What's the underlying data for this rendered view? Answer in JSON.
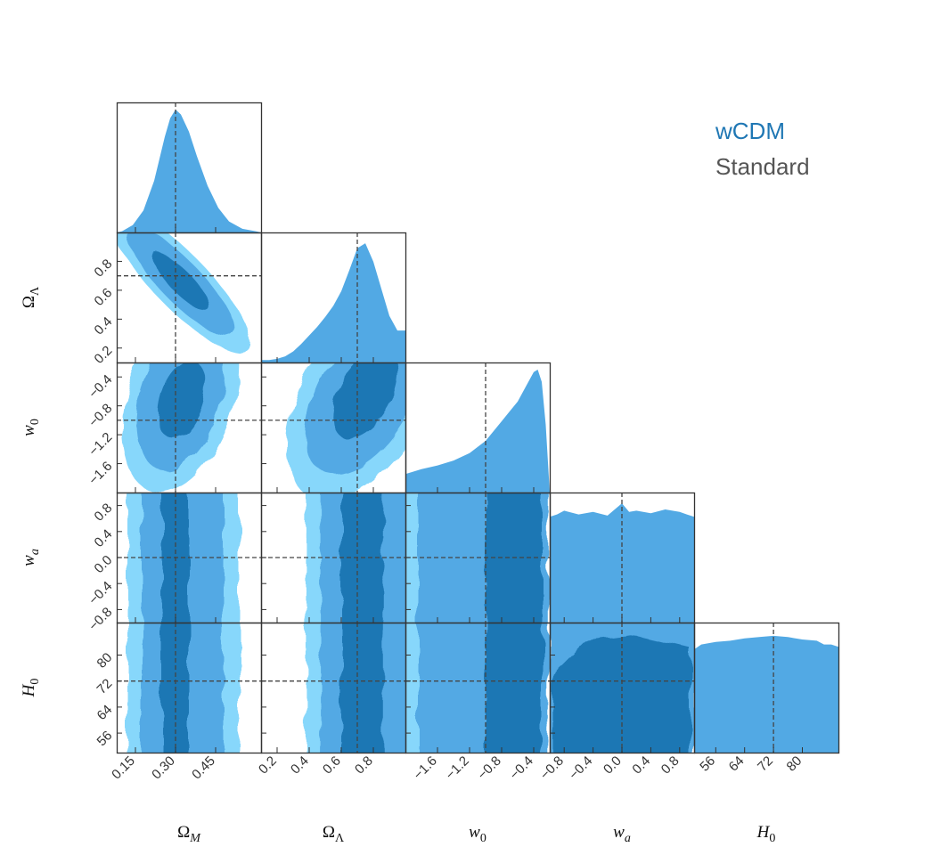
{
  "chart_data": {
    "type": "corner",
    "parameters": [
      {
        "key": "om",
        "label": "Ω",
        "sub": "M",
        "range": [
          0.08,
          0.62
        ],
        "ticks": [
          0.15,
          0.3,
          0.45
        ],
        "tick_labels": [
          "0.15",
          "0.30",
          "0.45"
        ],
        "truth": 0.3
      },
      {
        "key": "ol",
        "label": "Ω",
        "sub": "Λ",
        "range": [
          0.1,
          1.0
        ],
        "ticks": [
          0.2,
          0.4,
          0.6,
          0.8
        ],
        "tick_labels": [
          "0.2",
          "0.4",
          "0.6",
          "0.8"
        ],
        "truth": 0.7
      },
      {
        "key": "w0",
        "label": "w",
        "sub": "0",
        "range": [
          -2.0,
          -0.2
        ],
        "ticks": [
          -1.6,
          -1.2,
          -0.8,
          -0.4
        ],
        "tick_labels": [
          "−1.6",
          "−1.2",
          "−0.8",
          "−0.4"
        ],
        "truth": -1.0
      },
      {
        "key": "wa",
        "label": "w",
        "sub": "a",
        "range": [
          -1.0,
          1.0
        ],
        "ticks": [
          -0.8,
          -0.4,
          0.0,
          0.4,
          0.8
        ],
        "tick_labels": [
          "−0.8",
          "−0.4",
          "0.0",
          "0.4",
          "0.8"
        ],
        "truth": 0.0
      },
      {
        "key": "h0",
        "label": "H",
        "sub": "0",
        "range": [
          50,
          90
        ],
        "ticks": [
          56,
          64,
          72,
          80
        ],
        "tick_labels": [
          "56",
          "64",
          "72",
          "80"
        ],
        "truth": 72
      }
    ],
    "legend": [
      {
        "name": "wCDM",
        "color": "#1f77b4"
      },
      {
        "name": "Standard",
        "color": "#555555"
      }
    ],
    "legend_placement": "top-right",
    "colors": {
      "level1": "#87d7fb",
      "level2": "#52a9e4",
      "level3": "#1f77b4",
      "fill_1d": "#52a9e4",
      "truth_line": "#444444",
      "frame": "#333333"
    },
    "marginals_1d": {
      "om": {
        "x": [
          0.08,
          0.1,
          0.14,
          0.18,
          0.22,
          0.26,
          0.28,
          0.3,
          0.32,
          0.35,
          0.38,
          0.42,
          0.46,
          0.5,
          0.55,
          0.6,
          0.62
        ],
        "y": [
          0,
          0.01,
          0.06,
          0.18,
          0.42,
          0.78,
          0.93,
          1.0,
          0.96,
          0.82,
          0.62,
          0.38,
          0.2,
          0.09,
          0.03,
          0.01,
          0
        ]
      },
      "ol": {
        "x": [
          0.1,
          0.15,
          0.2,
          0.25,
          0.3,
          0.35,
          0.4,
          0.45,
          0.5,
          0.55,
          0.6,
          0.65,
          0.7,
          0.75,
          0.8,
          0.85,
          0.9,
          0.95,
          0.98,
          1.0
        ],
        "y": [
          0.02,
          0.02,
          0.03,
          0.05,
          0.09,
          0.15,
          0.22,
          0.29,
          0.37,
          0.46,
          0.58,
          0.75,
          0.93,
          0.97,
          0.82,
          0.6,
          0.38,
          0.26,
          0.26,
          0.26
        ]
      },
      "w0": {
        "x": [
          -2.0,
          -1.9,
          -1.8,
          -1.6,
          -1.4,
          -1.2,
          -1.0,
          -0.9,
          -0.8,
          -0.7,
          -0.6,
          -0.5,
          -0.4,
          -0.35,
          -0.3,
          -0.25,
          -0.2
        ],
        "y": [
          0.15,
          0.17,
          0.19,
          0.22,
          0.26,
          0.32,
          0.42,
          0.5,
          0.58,
          0.66,
          0.74,
          0.86,
          0.98,
          1.0,
          0.9,
          0.55,
          0.0
        ]
      },
      "wa": {
        "x": [
          -1.0,
          -0.9,
          -0.8,
          -0.6,
          -0.4,
          -0.2,
          0.0,
          0.1,
          0.2,
          0.4,
          0.6,
          0.8,
          0.9,
          1.0
        ],
        "y": [
          0.86,
          0.88,
          0.91,
          0.88,
          0.9,
          0.87,
          0.97,
          0.9,
          0.91,
          0.89,
          0.92,
          0.9,
          0.88,
          0.86
        ]
      },
      "h0": {
        "x": [
          50,
          52,
          56,
          60,
          64,
          68,
          72,
          76,
          80,
          84,
          86,
          88,
          90
        ],
        "y": [
          0.84,
          0.88,
          0.9,
          0.91,
          0.93,
          0.94,
          0.95,
          0.94,
          0.92,
          0.91,
          0.88,
          0.88,
          0.86
        ]
      }
    }
  }
}
